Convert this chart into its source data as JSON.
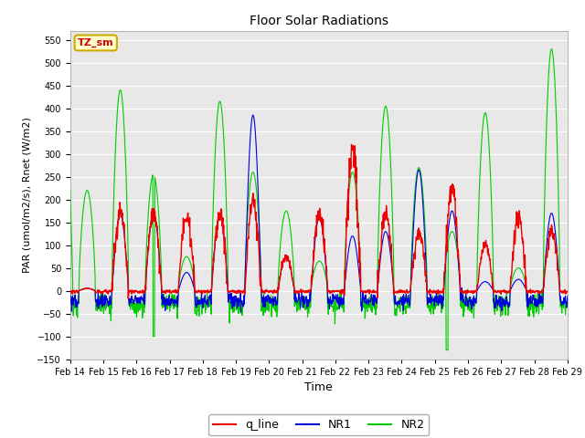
{
  "title": "Floor Solar Radiations",
  "xlabel": "Time",
  "ylabel": "PAR (umol/m2/s), Rnet (W/m2)",
  "ylim": [
    -150,
    570
  ],
  "yticks": [
    -150,
    -100,
    -50,
    0,
    50,
    100,
    150,
    200,
    250,
    300,
    350,
    400,
    450,
    500,
    550
  ],
  "date_labels": [
    "Feb 14",
    "Feb 15",
    "Feb 16",
    "Feb 17",
    "Feb 18",
    "Feb 19",
    "Feb 20",
    "Feb 21",
    "Feb 22",
    "Feb 23",
    "Feb 24",
    "Feb 25",
    "Feb 26",
    "Feb 27",
    "Feb 28",
    "Feb 29"
  ],
  "annotation_text": "TZ_sm",
  "annotation_color": "#cc0000",
  "annotation_bg": "#ffffcc",
  "annotation_border": "#ccaa00",
  "colors": {
    "q_line": "#ee0000",
    "NR1": "#0000dd",
    "NR2": "#00cc00"
  },
  "legend_labels": [
    "q_line",
    "NR1",
    "NR2"
  ],
  "fig_bg": "#ffffff",
  "plot_bg": "#e8e8e8"
}
